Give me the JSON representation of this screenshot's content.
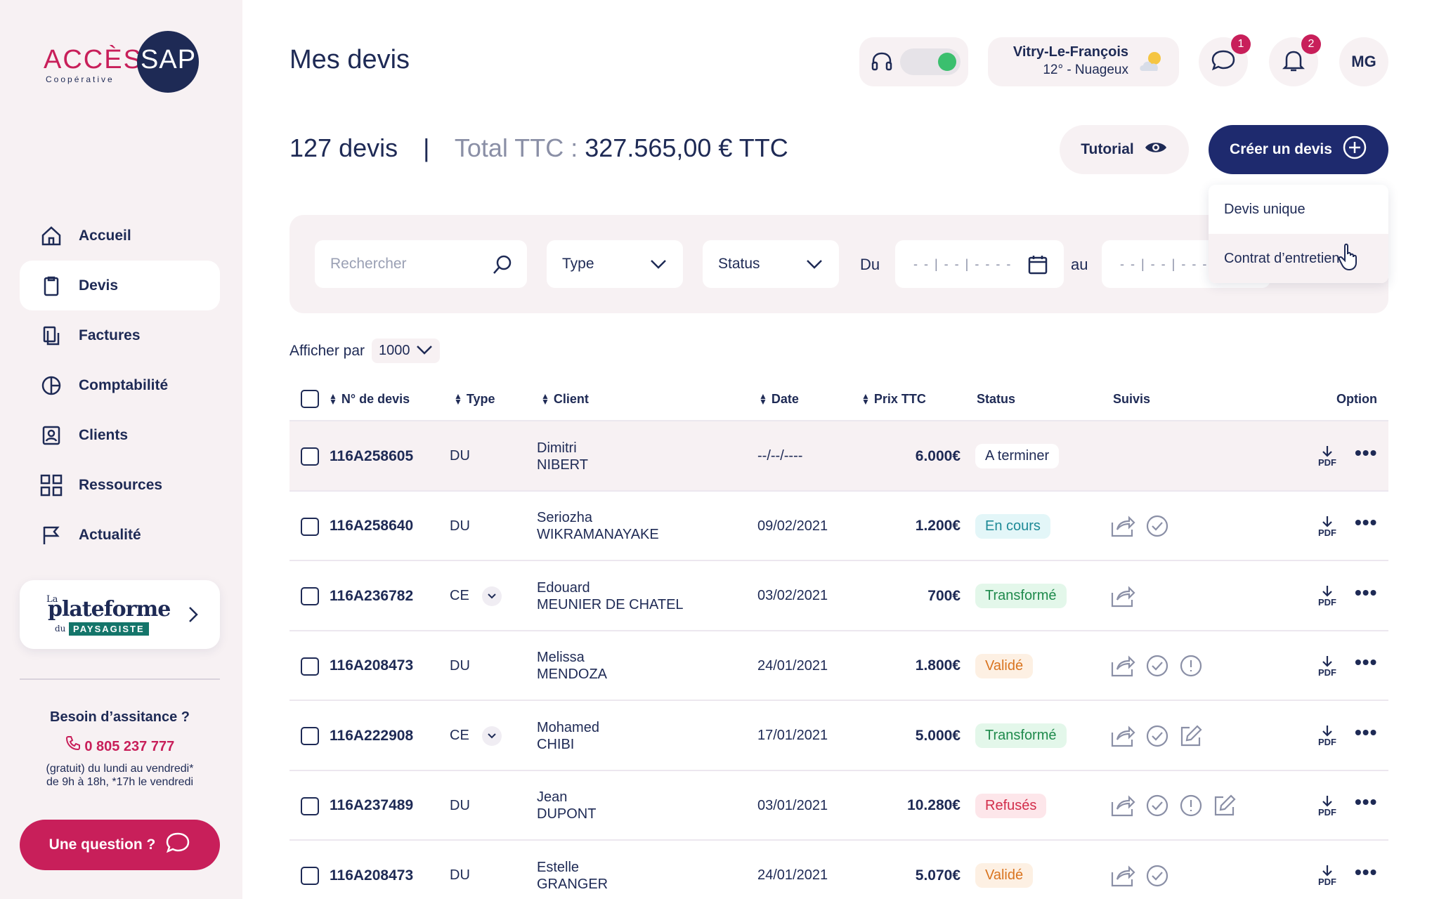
{
  "brand": {
    "logo_word": "ACCÈS",
    "logo_circle": "SAP",
    "logo_sub": "Coopérative"
  },
  "page": {
    "title": "Mes devis"
  },
  "sidebar": {
    "items": [
      {
        "label": "Accueil",
        "icon": "home-icon"
      },
      {
        "label": "Devis",
        "icon": "clipboard-icon",
        "active": true
      },
      {
        "label": "Factures",
        "icon": "invoice-icon"
      },
      {
        "label": "Comptabilité",
        "icon": "pie-chart-icon"
      },
      {
        "label": "Clients",
        "icon": "contacts-icon"
      },
      {
        "label": "Ressources",
        "icon": "grid-icon"
      },
      {
        "label": "Actualité",
        "icon": "flag-icon"
      }
    ],
    "partner": {
      "la": "La",
      "main": "plateforme",
      "du": "du",
      "tag": "PAYSAGISTE"
    },
    "help": {
      "title": "Besoin d’assitance ?",
      "phone": "0 805 237 777",
      "line1": "(gratuit) du lundi au vendredi*",
      "line2": "de 9h à 18h, *17h le vendredi"
    },
    "question_label": "Une question ?"
  },
  "header": {
    "weather_city": "Vitry-Le-François",
    "weather_desc": "12° - Nuageux",
    "messages_badge": "1",
    "notifications_badge": "2",
    "avatar_initials": "MG"
  },
  "summary": {
    "count": "127 devis",
    "separator": "|",
    "total_label": "Total TTC :",
    "total_value": "327.565,00 € TTC"
  },
  "actions": {
    "tutorial_label": "Tutorial",
    "create_label": "Créer un devis",
    "dropdown_items": [
      "Devis unique",
      "Contrat d’entretien"
    ]
  },
  "filters": {
    "search_placeholder": "Rechercher",
    "type_label": "Type",
    "status_label": "Status",
    "from_label": "Du",
    "to_label": "au",
    "date_placeholder": "- -  |  - -  |  - - - -"
  },
  "pagination": {
    "label": "Afficher par",
    "value": "1000"
  },
  "table": {
    "headers": {
      "num": "N° de devis",
      "type": "Type",
      "client": "Client",
      "date": "Date",
      "price": "Prix TTC",
      "status": "Status",
      "suivis": "Suivis",
      "option": "Option"
    },
    "pdf_label": "PDF",
    "rows": [
      {
        "num": "116A258605",
        "type": "DU",
        "first": "Dimitri",
        "last": "NIBERT",
        "date": "--/--/----",
        "price": "6.000€",
        "status": "A terminer"
      },
      {
        "num": "116A258640",
        "type": "DU",
        "first": "Seriozha",
        "last": "WIKRAMANAYAKE",
        "date": "09/02/2021",
        "price": "1.200€",
        "status": "En cours"
      },
      {
        "num": "116A236782",
        "type": "CE",
        "first": "Edouard",
        "last": "MEUNIER DE CHATEL",
        "date": "03/02/2021",
        "price": "700€",
        "status": "Transformé"
      },
      {
        "num": "116A208473",
        "type": "DU",
        "first": "Melissa",
        "last": "MENDOZA",
        "date": "24/01/2021",
        "price": "1.800€",
        "status": "Validé"
      },
      {
        "num": "116A222908",
        "type": "CE",
        "first": "Mohamed",
        "last": "CHIBI",
        "date": "17/01/2021",
        "price": "5.000€",
        "status": "Transformé"
      },
      {
        "num": "116A237489",
        "type": "DU",
        "first": "Jean",
        "last": "DUPONT",
        "date": "03/01/2021",
        "price": "10.280€",
        "status": "Refusés"
      },
      {
        "num": "116A208473",
        "type": "DU",
        "first": "Estelle",
        "last": "GRANGER",
        "date": "24/01/2021",
        "price": "5.070€",
        "status": "Validé"
      }
    ]
  },
  "colors": {
    "navy": "#1e2a55",
    "brand_pink": "#c81f5a",
    "status_en_cours": "#e3f6f8",
    "status_transforme": "#e3f7ea",
    "status_valide": "#fdf0e3",
    "status_refuse": "#fde6ea"
  }
}
